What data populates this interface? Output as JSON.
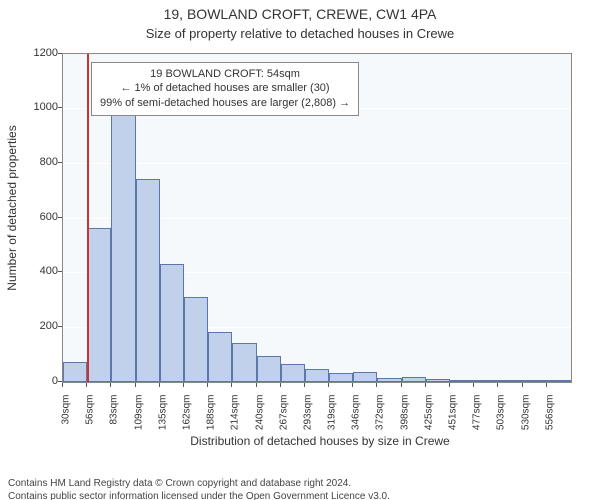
{
  "title": "19, BOWLAND CROFT, CREWE, CW1 4PA",
  "subtitle": "Size of property relative to detached houses in Crewe",
  "chart": {
    "type": "histogram",
    "background_color": "#f6f9fc",
    "border_color": "#888888",
    "grid_color": "#ffffff",
    "bar_fill": "#c1d1ec",
    "bar_stroke": "#5b78a9",
    "marker_color": "#d03030",
    "ylabel": "Number of detached properties",
    "xlabel": "Distribution of detached houses by size in Crewe",
    "ylim": [
      0,
      1200
    ],
    "yticks": [
      0,
      200,
      400,
      600,
      800,
      1000,
      1200
    ],
    "x_tick_labels": [
      "30sqm",
      "56sqm",
      "83sqm",
      "109sqm",
      "135sqm",
      "162sqm",
      "188sqm",
      "214sqm",
      "240sqm",
      "267sqm",
      "293sqm",
      "319sqm",
      "346sqm",
      "372sqm",
      "398sqm",
      "425sqm",
      "451sqm",
      "477sqm",
      "503sqm",
      "530sqm",
      "556sqm"
    ],
    "bars": [
      70,
      560,
      1015,
      740,
      430,
      310,
      180,
      140,
      95,
      65,
      45,
      30,
      35,
      12,
      15,
      8,
      6,
      5,
      4,
      3,
      0
    ],
    "marker_bin_left_edge_index": 1,
    "label_fontsize": 12,
    "tick_fontsize": 11,
    "title_fontsize": 14
  },
  "annotation": {
    "line1": "19 BOWLAND CROFT: 54sqm",
    "line2": "← 1% of detached houses are smaller (30)",
    "line3": "99% of semi-detached houses are larger (2,808) →",
    "border_color": "#888888",
    "background_color": "#ffffff",
    "fontsize": 11
  },
  "footer": {
    "line1": "Contains HM Land Registry data © Crown copyright and database right 2024.",
    "line2": "Contains public sector information licensed under the Open Government Licence v3.0."
  }
}
